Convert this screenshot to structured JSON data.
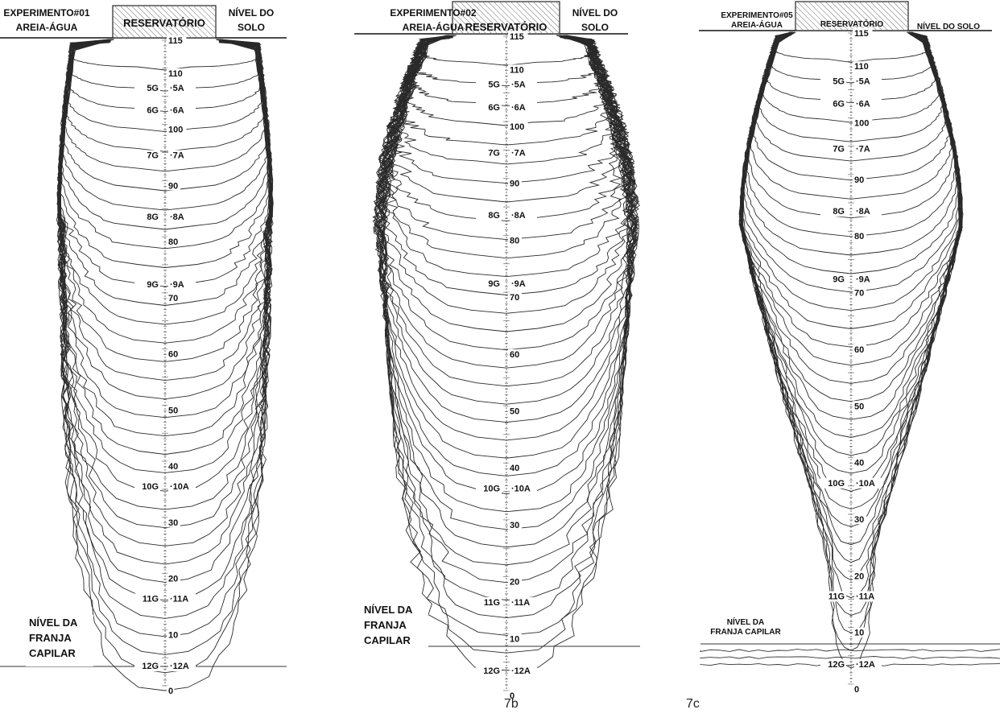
{
  "panels": [
    {
      "experiment": "EXPERIMENTO#01",
      "mix": "AREIA-ÁGUA",
      "reservoir": "RESERVATÓRIO",
      "ground_level": [
        "NÍVEL DO",
        "SOLO"
      ],
      "fringe": [
        "NÍVEL DA",
        "FRANJA",
        "CAPILAR"
      ],
      "scale_labels": [
        "115",
        "110",
        "100",
        "90",
        "80",
        "70",
        "60",
        "50",
        "40",
        "30",
        "20",
        "10",
        "0"
      ],
      "g_markers": [
        "5G",
        "6G",
        "7G",
        "8G",
        "9G",
        "10G",
        "11G",
        "12G"
      ],
      "a_markers": [
        "5A",
        "6A",
        "7A",
        "8A",
        "9A",
        "10A",
        "11A",
        "12A"
      ]
    },
    {
      "experiment": "EXPERIMENTO#02",
      "mix": "AREIA-ÁGUA",
      "reservoir": "RESERVATÓRIO",
      "ground_level": [
        "NÍVEL DO",
        "SOLO"
      ],
      "fringe": [
        "NÍVEL DA",
        "FRANJA",
        "CAPILAR"
      ],
      "scale_labels": [
        "115",
        "110",
        "100",
        "90",
        "80",
        "70",
        "60",
        "50",
        "40",
        "30",
        "20",
        "10",
        "0"
      ],
      "g_markers": [
        "5G",
        "6G",
        "7G",
        "8G",
        "9G",
        "10G",
        "11G",
        "12G"
      ],
      "a_markers": [
        "5A",
        "6A",
        "7A",
        "8A",
        "9A",
        "10A",
        "11A",
        "12A"
      ]
    },
    {
      "experiment": "EXPERIMENTO#05",
      "mix": "AREIA-ÁGUA",
      "reservoir": "RESERVATÓRIO",
      "ground_level": [
        "NÍVEL DO SOLO"
      ],
      "fringe": [
        "NÍVEL DA",
        "FRANJA CAPILAR"
      ],
      "scale_labels": [
        "115",
        "110",
        "100",
        "90",
        "80",
        "70",
        "60",
        "50",
        "40",
        "30",
        "20",
        "10",
        "0"
      ],
      "g_markers": [
        "5G",
        "6G",
        "7G",
        "8G",
        "9G",
        "10G",
        "11G",
        "12G"
      ],
      "a_markers": [
        "5A",
        "6A",
        "7A",
        "8A",
        "9A",
        "10A",
        "11A",
        "12A"
      ]
    }
  ],
  "captions": [
    "7b",
    "7c"
  ]
}
